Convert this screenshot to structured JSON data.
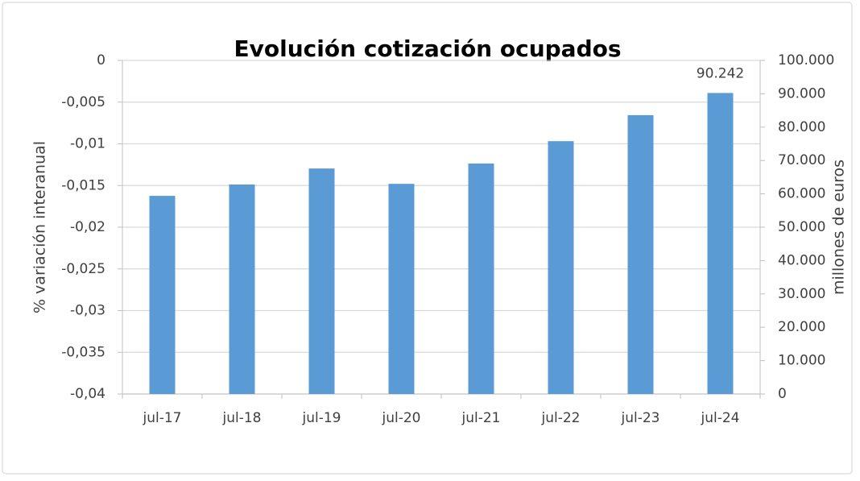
{
  "chart_data": {
    "type": "bar",
    "title": "Evolución cotización ocupados",
    "y_label": "% variación interanual",
    "y2_label": "millones de euros",
    "categories": [
      "jul-17",
      "jul-18",
      "jul-19",
      "jul-20",
      "jul-21",
      "jul-22",
      "jul-23",
      "jul-24"
    ],
    "series": [
      {
        "color": "#5b9bd5",
        "axis": "y2",
        "values": [
          59400,
          62800,
          67600,
          63000,
          69100,
          75800,
          83600,
          90242
        ],
        "value_labels": [
          null,
          null,
          null,
          null,
          null,
          null,
          null,
          "90.242"
        ]
      }
    ],
    "ylim": [
      -0.04,
      0
    ],
    "yticks": [
      0,
      {
        "value": -0.005,
        "label": "-0,005"
      },
      {
        "value": -0.01,
        "label": "-0,01"
      },
      {
        "value": -0.015,
        "label": "-0,015"
      },
      {
        "value": -0.02,
        "label": "-0,02"
      },
      {
        "value": -0.025,
        "label": "-0,025"
      },
      {
        "value": -0.03,
        "label": "-0,03"
      },
      {
        "value": -0.035,
        "label": "-0,035"
      },
      {
        "value": -0.04,
        "label": "-0,04"
      }
    ],
    "y2lim": [
      0,
      100000
    ],
    "y2ticks": [
      0,
      {
        "value": 10000,
        "label": "10.000"
      },
      {
        "value": 20000,
        "label": "20.000"
      },
      {
        "value": 30000,
        "label": "30.000"
      },
      {
        "value": 40000,
        "label": "40.000"
      },
      {
        "value": 50000,
        "label": "50.000"
      },
      {
        "value": 60000,
        "label": "60.000"
      },
      {
        "value": 70000,
        "label": "70.000"
      },
      {
        "value": 80000,
        "label": "80.000"
      },
      {
        "value": 90000,
        "label": "90.000"
      },
      {
        "value": 100000,
        "label": "100.000"
      }
    ],
    "grid": true
  }
}
